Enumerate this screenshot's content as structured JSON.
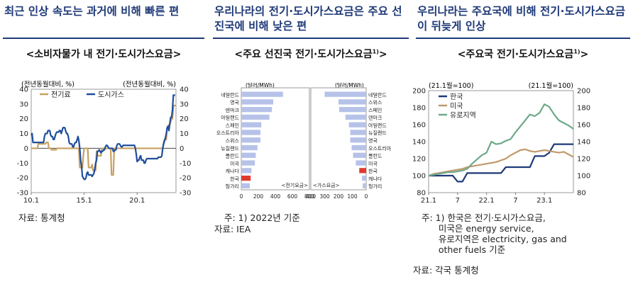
{
  "panel1": {
    "heading": "최근 인상 속도는 과거에 비해 빠른 편",
    "subtitle": "<소비자물가 내 전기·도시가스요금>",
    "unit_left": "(전년동월대비, %)",
    "unit_right": "(전년동월대비, %)",
    "source": "자료: 통계청"
  },
  "panel2": {
    "heading": "우리나라의 전기·도시가스요금은 주요 선진국에 비해 낮은 편",
    "subtitle": "<주요 선진국 전기·도시가스요금",
    "subtitle_sup": "1)",
    "subtitle_end": ">",
    "unit_left": "(달러/MWh)",
    "unit_right": "(달러/MWh)",
    "note1": "주: 1) 2022년 기준",
    "source": "자료: IEA"
  },
  "panel3": {
    "heading": "우리나라는 주요국에 비해 전기·도시가스요금이 뒤늦게 인상",
    "subtitle": "<주요국 전기·도시가스요금",
    "subtitle_sup": "1)",
    "subtitle_end": ">",
    "unit_left": "(21.1월=100)",
    "unit_right": "(21.1월=100)",
    "note": "주: 1) 한국은 전기·도시가스요금,\n      미국은 energy service,\n      유로지역은 electricity, gas and\n      other fuels 기준",
    "source": "자료: 각국 통계청"
  },
  "chart_data": [
    {
      "type": "line",
      "ylim": [
        -30,
        40
      ],
      "y_ticks": [
        -30,
        -20,
        -10,
        0,
        10,
        20,
        30,
        40
      ],
      "x_ticks": [
        "10.1",
        "15.1",
        "20.1"
      ],
      "legend_placement": "top-left",
      "series": [
        {
          "name": "전기료",
          "color": "#c8a060",
          "values": [
            0,
            0,
            0,
            0,
            0,
            0,
            0,
            0,
            3,
            3,
            3,
            3,
            3,
            3,
            3,
            3,
            3,
            4,
            4,
            4,
            0,
            0,
            0,
            -1,
            -1,
            -1,
            -1,
            -1,
            -1,
            0,
            0,
            0,
            0,
            0,
            0,
            0,
            0,
            0,
            0,
            0,
            0,
            0,
            0,
            0,
            0,
            0,
            0,
            0,
            0,
            0,
            0,
            0,
            0,
            0,
            0,
            -13,
            -13,
            -13,
            -13,
            -5,
            0,
            0,
            0,
            0,
            0,
            -13,
            -13,
            -13,
            -13,
            -11,
            -15,
            -15,
            -15,
            -15,
            -2,
            -5,
            -5,
            -5,
            -5,
            -5,
            0,
            0,
            0,
            0,
            0,
            0,
            0,
            0,
            0,
            0,
            0,
            -18,
            -18,
            -18,
            0,
            0,
            0,
            0,
            0,
            0,
            0,
            0,
            0,
            0,
            0,
            0,
            0,
            0,
            0,
            0,
            0,
            0,
            0,
            0,
            0,
            0,
            0,
            0,
            0,
            0,
            0,
            0,
            0,
            0,
            0,
            0,
            0,
            0,
            0,
            0,
            0,
            0,
            0,
            0,
            0,
            0,
            0,
            0,
            0,
            0,
            0,
            0,
            0,
            0,
            0,
            0,
            0,
            0,
            0,
            0,
            4,
            6,
            6,
            6,
            14,
            14,
            16,
            16,
            18,
            20,
            20,
            28,
            29,
            29,
            29
          ]
        },
        {
          "name": "도시가스",
          "color": "#1f4e9c",
          "values": [
            9,
            10,
            4,
            4,
            4,
            4,
            4,
            4,
            4,
            4,
            4,
            4,
            4,
            4,
            4,
            8,
            10,
            10,
            10,
            12,
            12,
            12,
            9,
            8,
            8,
            6,
            6,
            8,
            10,
            11,
            11,
            11,
            12,
            12,
            10,
            12,
            14,
            14,
            14,
            12,
            10,
            10,
            8,
            4,
            3,
            3,
            3,
            1,
            1,
            3,
            4,
            4,
            6,
            8,
            5,
            0,
            -8,
            -12,
            -19,
            -20,
            -21,
            -21,
            -20,
            -17,
            -16,
            -18,
            -18,
            -18,
            -18,
            -19,
            -18,
            -17,
            -14,
            -10,
            -8,
            -2,
            -2,
            -1,
            -2,
            -3,
            -2,
            -2,
            -1,
            -1,
            1,
            2,
            2,
            1,
            0,
            0,
            0,
            0,
            0,
            -2,
            -2,
            -1,
            -1,
            2,
            3,
            3,
            3,
            2,
            1,
            1,
            2,
            2,
            2,
            2,
            2,
            2,
            2,
            2,
            2,
            2,
            2,
            2,
            2,
            2,
            0,
            -4,
            -9,
            -8,
            -8,
            -6,
            -5,
            -8,
            -8,
            -8,
            -10,
            -10,
            -8,
            -7,
            -7,
            -7,
            -7,
            -7,
            -7,
            -7,
            -7,
            -7,
            -7,
            -7,
            -7,
            -7,
            -6,
            -6,
            -6,
            -6,
            -5,
            0,
            3,
            5,
            7,
            10,
            14,
            15,
            12,
            17,
            21,
            21,
            26,
            36,
            36,
            36
          ]
        }
      ]
    },
    {
      "type": "bar",
      "subcharts": [
        {
          "name": "전기요금",
          "categories": [
            "네덜란드",
            "영국",
            "덴마크",
            "아일랜드",
            "스페인",
            "오스트리아",
            "스위스",
            "뉴질랜드",
            "폴란드",
            "미국",
            "캐나다",
            "한국",
            "헝가리"
          ],
          "values": [
            490,
            375,
            360,
            330,
            235,
            225,
            225,
            190,
            170,
            160,
            120,
            110,
            100
          ],
          "highlight": "한국",
          "xlim": [
            0,
            800
          ],
          "x_ticks": [
            0,
            200,
            400,
            600,
            800
          ],
          "orientation": "left-to-right"
        },
        {
          "name": "가스요금",
          "categories": [
            "네덜란드",
            "스위스",
            "스페인",
            "덴마크",
            "아일랜드",
            "뉴질랜드",
            "영국",
            "오스트리아",
            "폴란드",
            "미국",
            "한국",
            "캐나다",
            "헝가리"
          ],
          "values": [
            300,
            200,
            195,
            150,
            125,
            115,
            115,
            105,
            95,
            75,
            50,
            30,
            25
          ],
          "highlight": "한국",
          "xlim": [
            0,
            400
          ],
          "x_ticks": [
            400,
            300,
            200,
            100,
            0
          ],
          "orientation": "right-to-left"
        }
      ],
      "bar_color": "#b6c2e8",
      "highlight_color": "#e03a2f"
    },
    {
      "type": "line",
      "ylim": [
        80,
        200
      ],
      "y_ticks": [
        80,
        100,
        120,
        140,
        160,
        180,
        200
      ],
      "x_ticks": [
        "21.1",
        "7",
        "22.1",
        "7",
        "23.1"
      ],
      "x_tick_index": [
        0,
        6,
        12,
        18,
        24
      ],
      "legend_placement": "top-left",
      "series": [
        {
          "name": "한국",
          "color": "#1f3a78",
          "values": [
            100,
            100,
            100,
            100,
            100,
            100,
            93,
            93,
            103,
            103,
            103,
            103,
            103,
            103,
            103,
            103,
            110,
            110,
            110,
            110,
            110,
            110,
            123,
            123,
            123,
            127,
            137,
            137,
            137,
            137,
            137
          ]
        },
        {
          "name": "미국",
          "color": "#c09a6b",
          "values": [
            100,
            102,
            103,
            104,
            105,
            106,
            107,
            108,
            110,
            111,
            112,
            113,
            114,
            115,
            116,
            118,
            120,
            124,
            127,
            130,
            131,
            129,
            128,
            129,
            130,
            129,
            128,
            127,
            128,
            125,
            122
          ]
        },
        {
          "name": "유로지역",
          "color": "#6ea889",
          "values": [
            100,
            101,
            102,
            103,
            104,
            104,
            105,
            106,
            108,
            114,
            119,
            124,
            127,
            140,
            137,
            138,
            141,
            143,
            151,
            158,
            165,
            172,
            170,
            174,
            184,
            181,
            172,
            165,
            162,
            159,
            155
          ]
        }
      ]
    }
  ]
}
